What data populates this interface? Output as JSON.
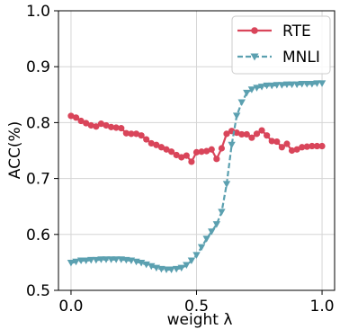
{
  "chart_data": {
    "type": "line",
    "xlabel": "weight λ",
    "ylabel": "ACC(%)",
    "xlim": [
      -0.05,
      1.05
    ],
    "ylim": [
      0.5,
      1.0
    ],
    "xticks": [
      {
        "value": 0.0,
        "label": "0.0"
      },
      {
        "value": 0.5,
        "label": "0.5"
      },
      {
        "value": 1.0,
        "label": "1.0"
      }
    ],
    "yticks": [
      {
        "value": 0.5,
        "label": "0.5"
      },
      {
        "value": 0.6,
        "label": "0.6"
      },
      {
        "value": 0.7,
        "label": "0.7"
      },
      {
        "value": 0.8,
        "label": "0.8"
      },
      {
        "value": 0.9,
        "label": "0.9"
      },
      {
        "value": 1.0,
        "label": "1.0"
      }
    ],
    "grid": true,
    "legend": "top-right",
    "x": [
      0.0,
      0.02,
      0.04,
      0.06,
      0.08,
      0.1,
      0.12,
      0.14,
      0.16,
      0.18,
      0.2,
      0.22,
      0.24,
      0.26,
      0.28,
      0.3,
      0.32,
      0.34,
      0.36,
      0.38,
      0.4,
      0.42,
      0.44,
      0.46,
      0.48,
      0.5,
      0.52,
      0.54,
      0.56,
      0.58,
      0.6,
      0.62,
      0.64,
      0.66,
      0.68,
      0.7,
      0.72,
      0.74,
      0.76,
      0.78,
      0.8,
      0.82,
      0.84,
      0.86,
      0.88,
      0.9,
      0.92,
      0.94,
      0.96,
      0.98,
      1.0
    ],
    "series": [
      {
        "name": "RTE",
        "color": "#d9455a",
        "marker": "circle",
        "linestyle": "solid",
        "values": [
          0.812,
          0.809,
          0.803,
          0.799,
          0.795,
          0.793,
          0.798,
          0.795,
          0.792,
          0.791,
          0.79,
          0.781,
          0.78,
          0.78,
          0.777,
          0.77,
          0.763,
          0.76,
          0.756,
          0.752,
          0.748,
          0.742,
          0.738,
          0.741,
          0.73,
          0.747,
          0.748,
          0.749,
          0.752,
          0.735,
          0.754,
          0.78,
          0.785,
          0.782,
          0.779,
          0.779,
          0.773,
          0.78,
          0.786,
          0.777,
          0.767,
          0.766,
          0.756,
          0.762,
          0.75,
          0.752,
          0.756,
          0.757,
          0.758,
          0.758,
          0.758
        ]
      },
      {
        "name": "MNLI",
        "color": "#5ba0b0",
        "marker": "triangle-down",
        "linestyle": "dashed",
        "values": [
          0.549,
          0.551,
          0.553,
          0.553,
          0.554,
          0.554,
          0.555,
          0.555,
          0.555,
          0.555,
          0.555,
          0.554,
          0.553,
          0.551,
          0.549,
          0.546,
          0.543,
          0.54,
          0.538,
          0.537,
          0.537,
          0.538,
          0.54,
          0.545,
          0.553,
          0.563,
          0.577,
          0.592,
          0.605,
          0.618,
          0.64,
          0.69,
          0.76,
          0.812,
          0.836,
          0.853,
          0.859,
          0.862,
          0.864,
          0.866,
          0.866,
          0.867,
          0.867,
          0.868,
          0.868,
          0.868,
          0.869,
          0.869,
          0.869,
          0.87,
          0.87
        ]
      }
    ]
  }
}
